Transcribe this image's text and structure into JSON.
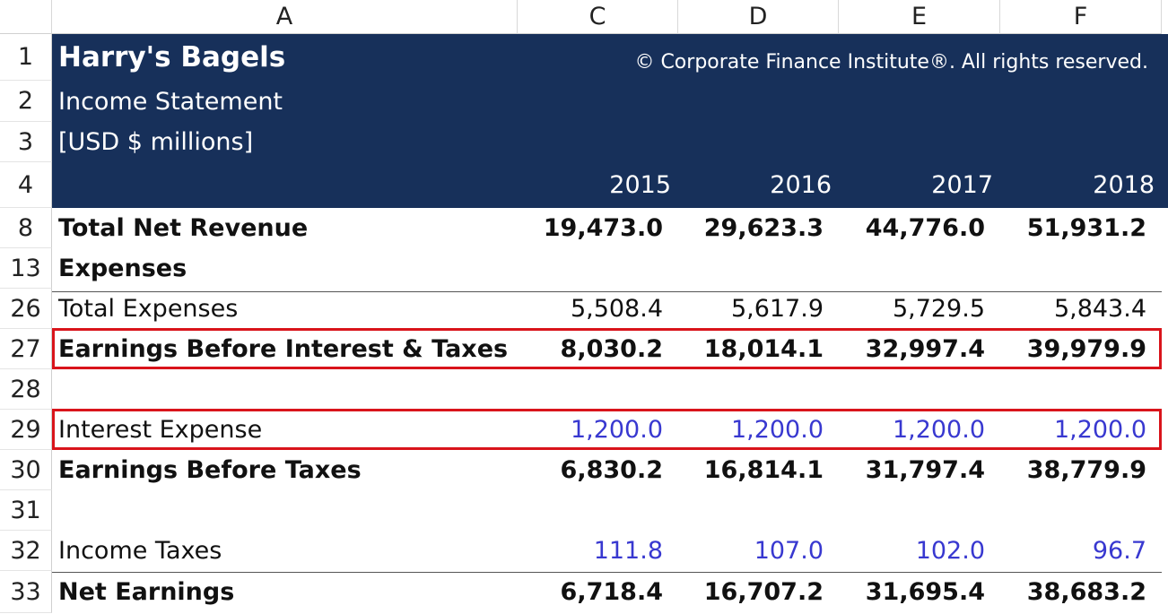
{
  "column_headers": [
    "A",
    "C",
    "D",
    "E",
    "F"
  ],
  "header": {
    "row_numbers": [
      "1",
      "2",
      "3",
      "4"
    ],
    "title": "Harry's Bagels",
    "subtitle": "Income Statement",
    "units": "[USD $ millions]",
    "copyright": "© Corporate Finance Institute®. All rights reserved.",
    "years": [
      "2015",
      "2016",
      "2017",
      "2018"
    ]
  },
  "rows": [
    {
      "number": "8",
      "label": "Total Net Revenue",
      "values": [
        "19,473.0",
        "29,623.3",
        "44,776.0",
        "51,931.2"
      ]
    },
    {
      "number": "13",
      "label": "Expenses"
    },
    {
      "number": "26",
      "label": "Total Expenses",
      "values": [
        "5,508.4",
        "5,617.9",
        "5,729.5",
        "5,843.4"
      ]
    },
    {
      "number": "27",
      "label": "Earnings Before Interest & Taxes",
      "values": [
        "8,030.2",
        "18,014.1",
        "32,997.4",
        "39,979.9"
      ]
    },
    {
      "number": "28"
    },
    {
      "number": "29",
      "label": "Interest Expense",
      "values": [
        "1,200.0",
        "1,200.0",
        "1,200.0",
        "1,200.0"
      ]
    },
    {
      "number": "30",
      "label": "Earnings Before Taxes",
      "values": [
        "6,830.2",
        "16,814.1",
        "31,797.4",
        "38,779.9"
      ]
    },
    {
      "number": "31"
    },
    {
      "number": "32",
      "label": "Income Taxes",
      "values": [
        "111.8",
        "107.0",
        "102.0",
        "96.7"
      ]
    },
    {
      "number": "33",
      "label": "Net Earnings",
      "values": [
        "6,718.4",
        "16,707.2",
        "31,695.4",
        "38,683.2"
      ]
    }
  ]
}
